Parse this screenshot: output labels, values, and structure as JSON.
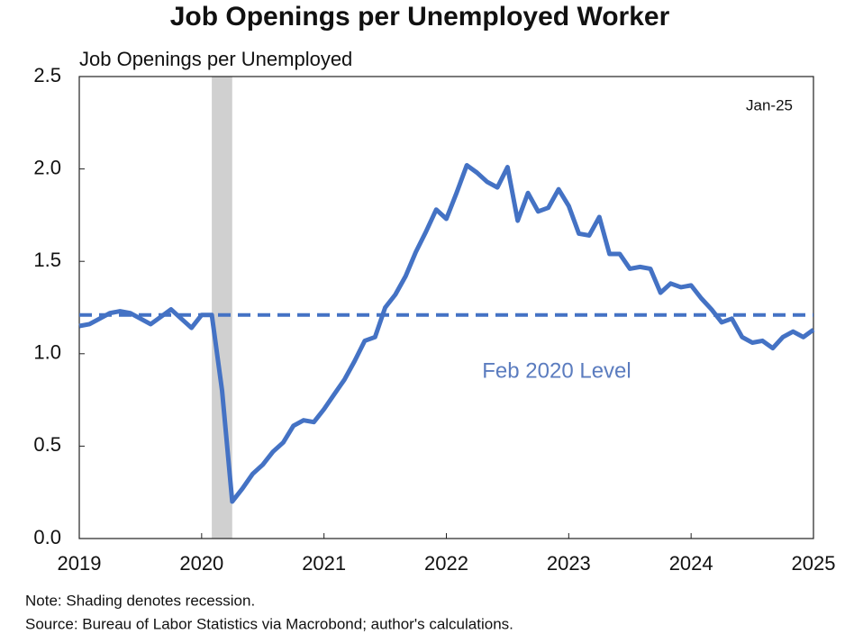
{
  "chart_data": {
    "type": "line",
    "title": "Job Openings per Unemployed Worker",
    "y_label": "Job Openings per Unemployed",
    "annotation": "Jan-25",
    "reference_line": {
      "value": 1.21,
      "label": "Feb 2020 Level",
      "color": "#4472c4"
    },
    "shading": {
      "start": 2020.083,
      "end": 2020.25,
      "color": "#d0d0d0"
    },
    "notes": [
      "Note: Shading denotes recession.",
      "Source: Bureau of Labor Statistics via Macrobond; author's calculations."
    ],
    "x": [
      2019,
      2019.083,
      2019.167,
      2019.25,
      2019.333,
      2019.417,
      2019.5,
      2019.583,
      2019.667,
      2019.75,
      2019.833,
      2019.917,
      2020,
      2020.083,
      2020.167,
      2020.25,
      2020.333,
      2020.417,
      2020.5,
      2020.583,
      2020.667,
      2020.75,
      2020.833,
      2020.917,
      2021,
      2021.083,
      2021.167,
      2021.25,
      2021.333,
      2021.417,
      2021.5,
      2021.583,
      2021.667,
      2021.75,
      2021.833,
      2021.917,
      2022,
      2022.083,
      2022.167,
      2022.25,
      2022.333,
      2022.417,
      2022.5,
      2022.583,
      2022.667,
      2022.75,
      2022.833,
      2022.917,
      2023,
      2023.083,
      2023.167,
      2023.25,
      2023.333,
      2023.417,
      2023.5,
      2023.583,
      2023.667,
      2023.75,
      2023.833,
      2023.917,
      2024,
      2024.083,
      2024.167,
      2024.25,
      2024.333,
      2024.417,
      2024.5,
      2024.583,
      2024.667,
      2024.75,
      2024.833,
      2024.917,
      2025
    ],
    "series": [
      {
        "name": "Job Openings per Unemployed",
        "color": "#4472c4",
        "values": [
          1.15,
          1.16,
          1.19,
          1.22,
          1.23,
          1.22,
          1.19,
          1.16,
          1.2,
          1.24,
          1.19,
          1.14,
          1.21,
          1.21,
          0.8,
          0.2,
          0.27,
          0.35,
          0.4,
          0.47,
          0.52,
          0.61,
          0.64,
          0.63,
          0.7,
          0.78,
          0.86,
          0.96,
          1.07,
          1.09,
          1.25,
          1.32,
          1.42,
          1.55,
          1.66,
          1.78,
          1.73,
          1.87,
          2.02,
          1.98,
          1.93,
          1.9,
          2.01,
          1.72,
          1.87,
          1.77,
          1.79,
          1.89,
          1.8,
          1.65,
          1.64,
          1.74,
          1.54,
          1.54,
          1.46,
          1.47,
          1.46,
          1.33,
          1.38,
          1.36,
          1.37,
          1.3,
          1.24,
          1.17,
          1.19,
          1.09,
          1.06,
          1.07,
          1.03,
          1.09,
          1.12,
          1.09,
          1.13
        ]
      }
    ],
    "xlim": [
      2019,
      2025
    ],
    "xticks": [
      2019,
      2020,
      2021,
      2022,
      2023,
      2024,
      2025
    ],
    "ylim": [
      0,
      2.5
    ],
    "yticks": [
      {
        "value": 0,
        "label": "0.0"
      },
      0.5,
      {
        "value": 1,
        "label": "1.0"
      },
      1.5,
      {
        "value": 2,
        "label": "2.0"
      },
      2.5
    ],
    "grid": false
  }
}
